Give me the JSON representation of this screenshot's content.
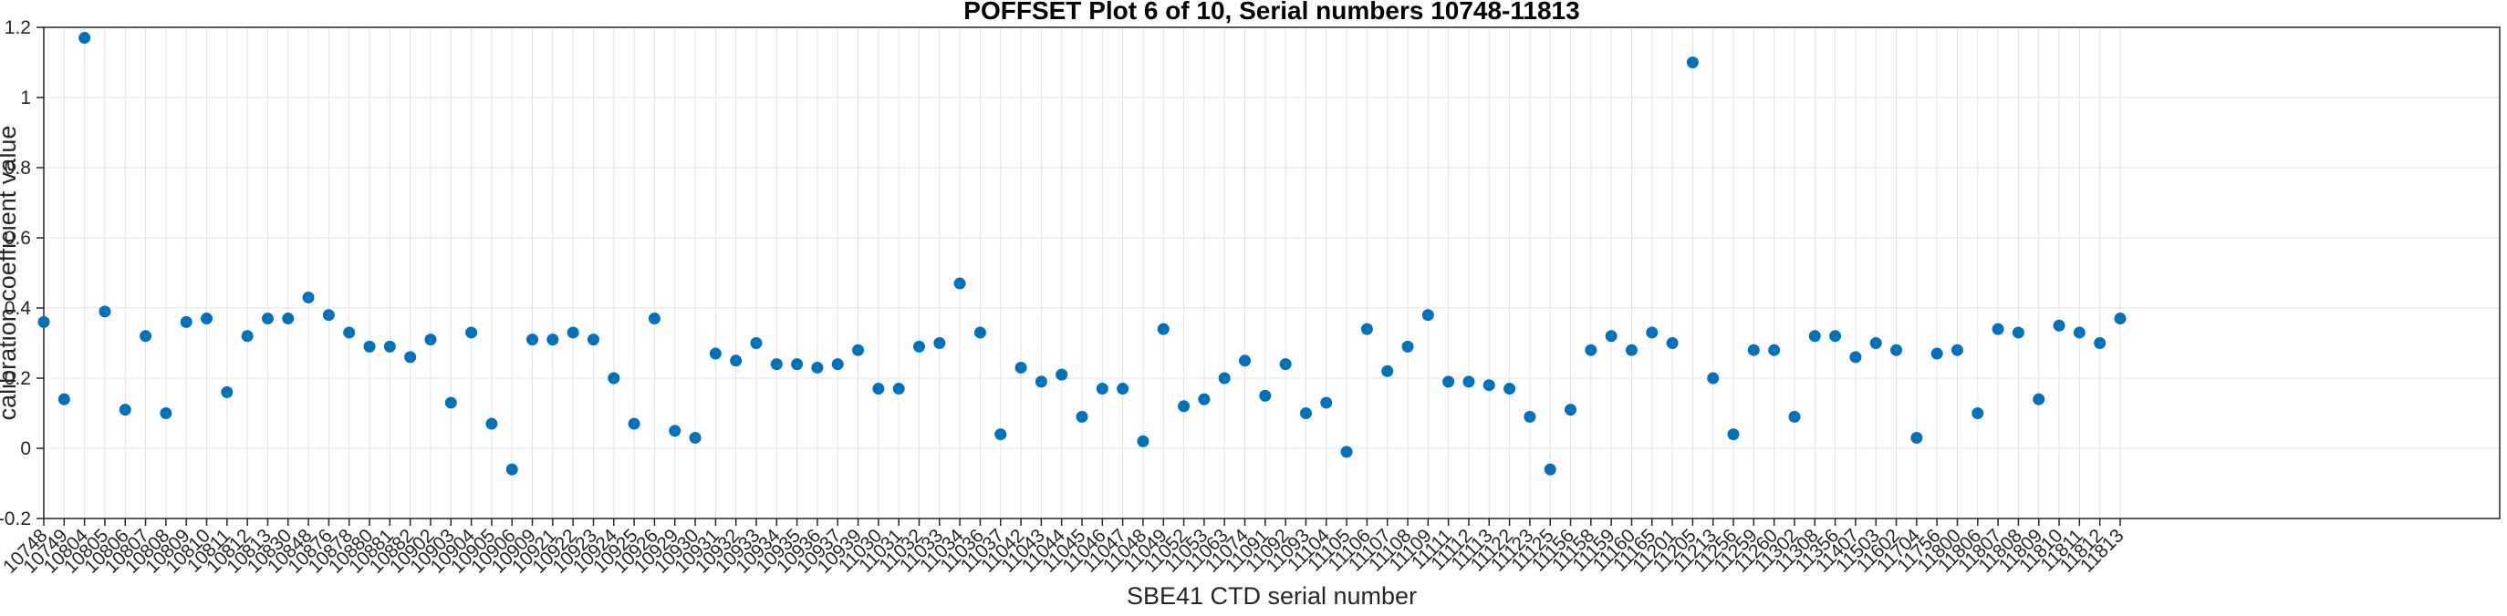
{
  "figure": {
    "title": "POFFSET Plot 6 of 10, Serial numbers 10748-11813",
    "xlabel": "SBE41 CTD serial number",
    "ylabel": "calibration coefficient value"
  },
  "chart_data": {
    "type": "scatter",
    "title": "POFFSET Plot 6 of 10, Serial numbers 10748-11813",
    "xlabel": "SBE41 CTD serial number",
    "ylabel": "calibration coefficient value",
    "categories": [
      "10748",
      "10749",
      "10804",
      "10805",
      "10806",
      "10807",
      "10808",
      "10809",
      "10810",
      "10811",
      "10812",
      "10813",
      "10830",
      "10848",
      "10876",
      "10878",
      "10880",
      "10881",
      "10882",
      "10902",
      "10903",
      "10904",
      "10905",
      "10906",
      "10909",
      "10921",
      "10922",
      "10923",
      "10924",
      "10925",
      "10926",
      "10929",
      "10930",
      "10931",
      "10932",
      "10933",
      "10934",
      "10935",
      "10936",
      "10937",
      "10939",
      "11030",
      "11031",
      "11032",
      "11033",
      "11034",
      "11036",
      "11037",
      "11042",
      "11043",
      "11044",
      "11045",
      "11046",
      "11047",
      "11048",
      "11049",
      "11052",
      "11053",
      "11063",
      "11074",
      "11091",
      "11092",
      "11093",
      "11104",
      "11105",
      "11106",
      "11107",
      "11108",
      "11109",
      "11111",
      "11112",
      "11113",
      "11122",
      "11123",
      "11125",
      "11156",
      "11158",
      "11159",
      "11160",
      "11165",
      "11201",
      "11205",
      "11213",
      "11256",
      "11259",
      "11260",
      "11302",
      "11308",
      "11356",
      "11407",
      "11503",
      "11602",
      "11704",
      "11756",
      "11800",
      "11806",
      "11807",
      "11808",
      "11809",
      "11810",
      "11811",
      "11812",
      "11813"
    ],
    "values": [
      0.36,
      0.14,
      1.17,
      0.39,
      0.11,
      0.32,
      0.1,
      0.36,
      0.37,
      0.16,
      0.32,
      0.37,
      0.37,
      0.43,
      0.38,
      0.33,
      0.29,
      0.29,
      0.26,
      0.31,
      0.13,
      0.33,
      0.07,
      -0.06,
      0.31,
      0.31,
      0.33,
      0.31,
      0.2,
      0.07,
      0.37,
      0.05,
      0.03,
      0.27,
      0.25,
      0.3,
      0.24,
      0.24,
      0.23,
      0.24,
      0.28,
      0.17,
      0.17,
      0.29,
      0.3,
      0.47,
      0.33,
      0.04,
      0.23,
      0.19,
      0.21,
      0.09,
      0.17,
      0.17,
      0.02,
      0.34,
      0.12,
      0.14,
      0.2,
      0.25,
      0.15,
      0.24,
      0.1,
      0.13,
      -0.01,
      0.34,
      0.22,
      0.29,
      0.38,
      0.19,
      0.19,
      0.18,
      0.17,
      0.09,
      -0.06,
      0.11,
      0.28,
      0.32,
      0.28,
      0.33,
      0.3,
      1.1,
      0.2,
      0.04,
      0.28,
      0.28,
      0.09,
      0.32,
      0.32,
      0.26,
      0.3,
      0.28,
      0.03,
      0.27,
      0.28,
      0.1,
      0.34,
      0.33,
      0.14,
      0.35,
      0.33,
      0.3,
      0.37
    ],
    "ylim": [
      -0.2,
      1.2
    ],
    "yticks": [
      -0.2,
      0,
      0.2,
      0.4,
      0.6,
      0.8,
      1,
      1.2
    ],
    "ytick_labels": [
      "-0.2",
      "0",
      "0.2",
      "0.4",
      "0.6",
      "0.8",
      "1",
      "1.2"
    ],
    "xtick_rotation_deg": 45,
    "grid": true,
    "legend_position": "none",
    "marker_color": "#0072BD",
    "grid_color": "#e2e2e2",
    "axis_color": "#252525"
  }
}
